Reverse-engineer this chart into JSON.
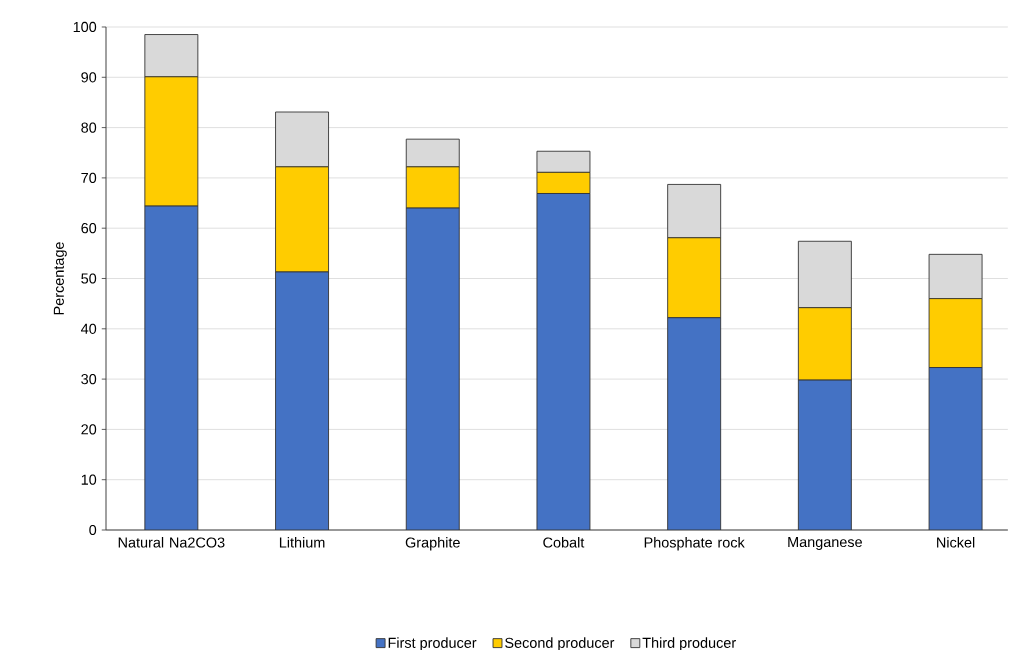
{
  "chart_data": {
    "type": "bar",
    "stacked": true,
    "ylabel": "Percentage",
    "categories": [
      "Natural Na2CO3",
      "Lithium",
      "Graphite",
      "Cobalt",
      "Phosphate rock",
      "Manganese",
      "Nickel"
    ],
    "series": [
      {
        "name": "First producer",
        "color": "#4472c4",
        "values": [
          64.4,
          51.3,
          64.0,
          66.9,
          42.2,
          29.8,
          32.3
        ]
      },
      {
        "name": "Second producer",
        "color": "#ffcc00",
        "values": [
          25.7,
          20.9,
          8.2,
          4.2,
          15.9,
          14.4,
          13.7
        ]
      },
      {
        "name": "Third producer",
        "color": "#d9d9d9",
        "values": [
          8.4,
          10.9,
          5.5,
          4.2,
          10.6,
          13.2,
          8.8
        ]
      }
    ],
    "ylim": [
      0,
      100
    ],
    "yticks": [
      0,
      10,
      20,
      30,
      40,
      50,
      60,
      70,
      80,
      90,
      100
    ],
    "grid": "y",
    "legend": "bottom"
  }
}
